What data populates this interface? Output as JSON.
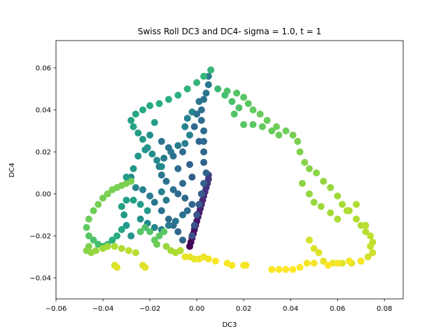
{
  "chart_data": {
    "type": "scatter",
    "title": "Swiss Roll DC3 and DC4- sigma = 1.0, t = 1",
    "xlabel": "DC3",
    "ylabel": "DC4",
    "xlim": [
      -0.06,
      0.088
    ],
    "ylim": [
      -0.05,
      0.073
    ],
    "xticks": [
      -0.06,
      -0.04,
      -0.02,
      0.0,
      0.02,
      0.04,
      0.06,
      0.08
    ],
    "xtick_labels": [
      "−0.06",
      "−0.04",
      "−0.02",
      "0.00",
      "0.02",
      "0.04",
      "0.06",
      "0.08"
    ],
    "yticks": [
      -0.04,
      -0.02,
      0.0,
      0.02,
      0.04,
      0.06
    ],
    "ytick_labels": [
      "−0.04",
      "−0.02",
      "0.00",
      "0.02",
      "0.04",
      "0.06"
    ],
    "grid": false,
    "colormap": "viridis",
    "points": [
      [
        -0.003,
        -0.025,
        0.0
      ],
      [
        -0.0025,
        -0.023,
        0.02
      ],
      [
        -0.002,
        -0.021,
        0.03
      ],
      [
        -0.0015,
        -0.019,
        0.04
      ],
      [
        -0.001,
        -0.017,
        0.05
      ],
      [
        -0.0005,
        -0.015,
        0.06
      ],
      [
        0.0,
        -0.013,
        0.07
      ],
      [
        0.0005,
        -0.011,
        0.08
      ],
      [
        0.001,
        -0.009,
        0.09
      ],
      [
        0.0015,
        -0.007,
        0.1
      ],
      [
        0.002,
        -0.005,
        0.11
      ],
      [
        0.0025,
        -0.003,
        0.12
      ],
      [
        0.003,
        -0.001,
        0.13
      ],
      [
        0.0035,
        0.001,
        0.14
      ],
      [
        0.004,
        0.003,
        0.15
      ],
      [
        0.0045,
        0.005,
        0.16
      ],
      [
        0.005,
        0.007,
        0.17
      ],
      [
        0.005,
        0.009,
        0.18
      ],
      [
        -0.002,
        -0.02,
        0.26
      ],
      [
        -0.001,
        -0.015,
        0.27
      ],
      [
        0.0,
        -0.01,
        0.28
      ],
      [
        0.001,
        -0.005,
        0.29
      ],
      [
        0.002,
        0.0,
        0.3
      ],
      [
        0.003,
        0.005,
        0.31
      ],
      [
        0.004,
        0.01,
        0.32
      ],
      [
        0.003,
        0.015,
        0.33
      ],
      [
        0.003,
        0.02,
        0.34
      ],
      [
        0.003,
        0.025,
        0.35
      ],
      [
        0.003,
        0.03,
        0.36
      ],
      [
        0.002,
        0.035,
        0.37
      ],
      [
        0.002,
        0.04,
        0.38
      ],
      [
        0.003,
        0.045,
        0.39
      ],
      [
        0.004,
        0.048,
        0.4
      ],
      [
        0.005,
        0.052,
        0.41
      ],
      [
        0.005,
        0.056,
        0.42
      ],
      [
        0.006,
        0.059,
        0.43
      ],
      [
        -0.006,
        -0.022,
        0.33
      ],
      [
        -0.008,
        -0.018,
        0.34
      ],
      [
        -0.01,
        -0.015,
        0.35
      ],
      [
        -0.012,
        -0.012,
        0.36
      ],
      [
        -0.015,
        -0.008,
        0.38
      ],
      [
        -0.018,
        -0.004,
        0.4
      ],
      [
        -0.02,
        -0.001,
        0.42
      ],
      [
        -0.023,
        0.002,
        0.44
      ],
      [
        -0.026,
        0.003,
        0.46
      ],
      [
        -0.028,
        0.008,
        0.48
      ],
      [
        -0.002,
        -0.005,
        0.34
      ],
      [
        -0.005,
        -0.002,
        0.35
      ],
      [
        -0.008,
        0.0,
        0.36
      ],
      [
        -0.01,
        0.002,
        0.37
      ],
      [
        -0.013,
        0.006,
        0.39
      ],
      [
        -0.015,
        0.009,
        0.4
      ],
      [
        -0.016,
        0.013,
        0.41
      ],
      [
        -0.014,
        0.017,
        0.42
      ],
      [
        -0.011,
        0.02,
        0.42
      ],
      [
        -0.008,
        0.023,
        0.43
      ],
      [
        -0.005,
        0.024,
        0.43
      ],
      [
        -0.003,
        0.028,
        0.44
      ],
      [
        -0.005,
        0.032,
        0.45
      ],
      [
        -0.004,
        0.036,
        0.45
      ],
      [
        -0.002,
        0.039,
        0.46
      ],
      [
        -0.015,
        0.013,
        0.46
      ],
      [
        -0.017,
        0.016,
        0.48
      ],
      [
        -0.019,
        0.019,
        0.5
      ],
      [
        -0.021,
        0.022,
        0.52
      ],
      [
        -0.023,
        0.026,
        0.54
      ],
      [
        -0.025,
        0.029,
        0.56
      ],
      [
        -0.027,
        0.032,
        0.58
      ],
      [
        -0.028,
        0.035,
        0.59
      ],
      [
        -0.026,
        0.038,
        0.6
      ],
      [
        -0.023,
        0.04,
        0.61
      ],
      [
        -0.02,
        0.042,
        0.62
      ],
      [
        -0.016,
        0.043,
        0.63
      ],
      [
        -0.012,
        0.045,
        0.64
      ],
      [
        -0.008,
        0.047,
        0.64
      ],
      [
        -0.004,
        0.05,
        0.65
      ],
      [
        0.0,
        0.053,
        0.66
      ],
      [
        0.003,
        0.056,
        0.66
      ],
      [
        0.006,
        0.059,
        0.67
      ],
      [
        -0.004,
        -0.008,
        0.37
      ],
      [
        -0.006,
        -0.01,
        0.38
      ],
      [
        -0.009,
        -0.013,
        0.4
      ],
      [
        -0.012,
        -0.015,
        0.42
      ],
      [
        -0.015,
        -0.017,
        0.44
      ],
      [
        -0.018,
        -0.016,
        0.46
      ],
      [
        -0.021,
        -0.014,
        0.48
      ],
      [
        -0.024,
        -0.012,
        0.5
      ],
      [
        0.009,
        0.05,
        0.68
      ],
      [
        0.012,
        0.047,
        0.7
      ],
      [
        0.015,
        0.044,
        0.71
      ],
      [
        0.018,
        0.041,
        0.72
      ],
      [
        0.016,
        0.038,
        0.73
      ],
      [
        0.02,
        0.033,
        0.74
      ],
      [
        0.024,
        0.033,
        0.75
      ],
      [
        0.028,
        0.032,
        0.76
      ],
      [
        0.032,
        0.03,
        0.77
      ],
      [
        0.035,
        0.028,
        0.78
      ],
      [
        0.013,
        0.049,
        0.72
      ],
      [
        0.017,
        0.048,
        0.73
      ],
      [
        0.02,
        0.046,
        0.74
      ],
      [
        0.022,
        0.043,
        0.75
      ],
      [
        0.024,
        0.04,
        0.76
      ],
      [
        0.027,
        0.038,
        0.77
      ],
      [
        0.03,
        0.035,
        0.77
      ],
      [
        0.034,
        0.032,
        0.78
      ],
      [
        0.038,
        0.03,
        0.78
      ],
      [
        0.041,
        0.028,
        0.79
      ],
      [
        0.043,
        0.025,
        0.8
      ],
      [
        0.044,
        0.02,
        0.81
      ],
      [
        0.046,
        0.015,
        0.82
      ],
      [
        0.048,
        0.012,
        0.82
      ],
      [
        0.051,
        0.01,
        0.83
      ],
      [
        0.054,
        0.006,
        0.84
      ],
      [
        0.057,
        0.003,
        0.85
      ],
      [
        0.06,
        -0.001,
        0.86
      ],
      [
        0.062,
        -0.005,
        0.87
      ],
      [
        0.065,
        -0.008,
        0.88
      ],
      [
        0.068,
        -0.012,
        0.89
      ],
      [
        0.07,
        -0.015,
        0.89
      ],
      [
        0.072,
        -0.018,
        0.9
      ],
      [
        0.074,
        -0.02,
        0.91
      ],
      [
        0.075,
        -0.023,
        0.91
      ],
      [
        0.045,
        0.005,
        0.83
      ],
      [
        0.048,
        0.0,
        0.84
      ],
      [
        0.05,
        -0.004,
        0.85
      ],
      [
        0.053,
        -0.006,
        0.86
      ],
      [
        0.057,
        -0.009,
        0.87
      ],
      [
        0.06,
        -0.012,
        0.88
      ],
      [
        0.064,
        -0.008,
        0.89
      ],
      [
        0.068,
        -0.005,
        0.89
      ],
      [
        0.072,
        -0.015,
        0.9
      ],
      [
        0.074,
        -0.025,
        0.92
      ],
      [
        0.075,
        -0.028,
        0.93
      ],
      [
        0.073,
        -0.03,
        0.94
      ],
      [
        0.07,
        -0.032,
        0.95
      ],
      [
        0.066,
        -0.033,
        0.96
      ],
      [
        0.062,
        -0.033,
        0.96
      ],
      [
        0.058,
        -0.033,
        0.97
      ],
      [
        0.054,
        -0.032,
        0.97
      ],
      [
        0.052,
        -0.028,
        0.96
      ],
      [
        0.05,
        -0.026,
        0.95
      ],
      [
        0.048,
        -0.022,
        0.94
      ],
      [
        -0.028,
        -0.02,
        0.52
      ],
      [
        -0.03,
        -0.015,
        0.54
      ],
      [
        -0.031,
        -0.01,
        0.55
      ],
      [
        -0.032,
        -0.006,
        0.56
      ],
      [
        -0.03,
        -0.003,
        0.57
      ],
      [
        -0.027,
        -0.003,
        0.57
      ],
      [
        -0.024,
        -0.005,
        0.56
      ],
      [
        -0.021,
        -0.008,
        0.55
      ],
      [
        -0.032,
        -0.017,
        0.6
      ],
      [
        -0.034,
        -0.02,
        0.62
      ],
      [
        -0.036,
        -0.022,
        0.64
      ],
      [
        -0.038,
        -0.024,
        0.66
      ],
      [
        -0.04,
        -0.025,
        0.68
      ],
      [
        -0.042,
        -0.024,
        0.7
      ],
      [
        -0.044,
        -0.022,
        0.72
      ],
      [
        -0.046,
        -0.02,
        0.74
      ],
      [
        -0.047,
        -0.016,
        0.76
      ],
      [
        -0.046,
        -0.012,
        0.78
      ],
      [
        -0.044,
        -0.008,
        0.78
      ],
      [
        -0.042,
        -0.005,
        0.79
      ],
      [
        -0.04,
        -0.002,
        0.79
      ],
      [
        -0.038,
        0.0,
        0.8
      ],
      [
        -0.036,
        0.002,
        0.8
      ],
      [
        -0.034,
        0.003,
        0.8
      ],
      [
        -0.032,
        0.004,
        0.8
      ],
      [
        -0.03,
        0.005,
        0.8
      ],
      [
        -0.028,
        0.006,
        0.8
      ],
      [
        -0.046,
        -0.025,
        0.8
      ],
      [
        -0.047,
        -0.027,
        0.82
      ],
      [
        -0.045,
        -0.028,
        0.84
      ],
      [
        -0.043,
        -0.027,
        0.85
      ],
      [
        -0.04,
        -0.026,
        0.86
      ],
      [
        -0.038,
        -0.025,
        0.87
      ],
      [
        -0.035,
        -0.025,
        0.88
      ],
      [
        -0.032,
        -0.026,
        0.89
      ],
      [
        -0.029,
        -0.027,
        0.9
      ],
      [
        -0.026,
        -0.028,
        0.9
      ],
      [
        -0.018,
        -0.022,
        0.76
      ],
      [
        -0.016,
        -0.02,
        0.75
      ],
      [
        -0.014,
        -0.018,
        0.74
      ],
      [
        -0.017,
        -0.024,
        0.78
      ],
      [
        -0.02,
        -0.018,
        0.73
      ],
      [
        -0.022,
        -0.016,
        0.72
      ],
      [
        -0.024,
        -0.018,
        0.74
      ],
      [
        -0.013,
        -0.025,
        0.85
      ],
      [
        -0.011,
        -0.027,
        0.87
      ],
      [
        -0.009,
        -0.028,
        0.88
      ],
      [
        -0.007,
        -0.027,
        0.89
      ],
      [
        -0.035,
        -0.034,
        0.95
      ],
      [
        -0.034,
        -0.035,
        0.96
      ],
      [
        -0.023,
        -0.034,
        0.95
      ],
      [
        -0.022,
        -0.035,
        0.96
      ],
      [
        -0.005,
        -0.03,
        0.97
      ],
      [
        -0.003,
        -0.03,
        0.97
      ],
      [
        -0.001,
        -0.031,
        0.97
      ],
      [
        0.001,
        -0.031,
        0.98
      ],
      [
        0.003,
        -0.03,
        0.98
      ],
      [
        0.005,
        -0.031,
        0.98
      ],
      [
        0.008,
        -0.032,
        0.99
      ],
      [
        0.013,
        -0.033,
        0.99
      ],
      [
        0.015,
        -0.034,
        0.99
      ],
      [
        0.02,
        -0.034,
        0.99
      ],
      [
        0.021,
        -0.034,
        0.99
      ],
      [
        0.032,
        -0.036,
        1.0
      ],
      [
        0.035,
        -0.036,
        1.0
      ],
      [
        0.038,
        -0.036,
        1.0
      ],
      [
        0.041,
        -0.036,
        1.0
      ],
      [
        0.044,
        -0.035,
        1.0
      ],
      [
        0.047,
        -0.033,
        0.99
      ],
      [
        0.05,
        -0.033,
        0.99
      ],
      [
        0.056,
        -0.034,
        1.0
      ],
      [
        0.06,
        -0.033,
        0.99
      ],
      [
        0.065,
        -0.032,
        0.99
      ],
      [
        0.07,
        -0.032,
        0.99
      ],
      [
        -0.006,
        0.02,
        0.36
      ],
      [
        -0.003,
        0.014,
        0.32
      ],
      [
        -0.002,
        0.008,
        0.3
      ],
      [
        -0.006,
        0.005,
        0.35
      ],
      [
        -0.008,
        0.012,
        0.37
      ],
      [
        -0.01,
        0.018,
        0.38
      ],
      [
        -0.012,
        0.022,
        0.39
      ],
      [
        -0.015,
        0.025,
        0.4
      ],
      [
        0.0,
        0.038,
        0.38
      ],
      [
        0.001,
        0.044,
        0.4
      ],
      [
        -0.001,
        0.032,
        0.36
      ],
      [
        0.001,
        0.025,
        0.33
      ],
      [
        -0.02,
        0.028,
        0.5
      ],
      [
        -0.018,
        0.034,
        0.55
      ],
      [
        -0.022,
        0.021,
        0.51
      ],
      [
        -0.025,
        0.018,
        0.52
      ],
      [
        -0.027,
        0.012,
        0.54
      ],
      [
        -0.03,
        0.008,
        0.56
      ],
      [
        -0.015,
        0.001,
        0.44
      ],
      [
        -0.013,
        -0.003,
        0.42
      ]
    ]
  }
}
